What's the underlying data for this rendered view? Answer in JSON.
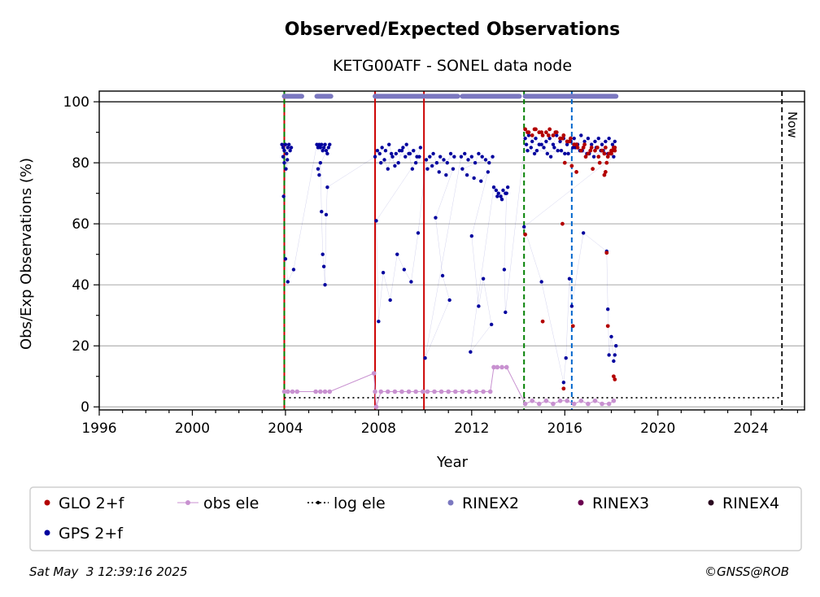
{
  "chart_data": {
    "type": "scatter",
    "title": "Observed/Expected Observations",
    "subtitle": "KETG00ATF - SONEL data node",
    "xlabel": "Year",
    "ylabel": "Obs/Exp Observations (%)",
    "xlim": [
      1996,
      2026.3
    ],
    "ylim": [
      -1,
      103.5
    ],
    "xticks": [
      1996,
      2000,
      2004,
      2008,
      2012,
      2016,
      2020,
      2024
    ],
    "yticks": [
      0,
      20,
      40,
      60,
      80,
      100
    ],
    "grid": "horizontal",
    "legend_position": "bottom",
    "now_label": "Now",
    "now_x": 2025.33,
    "vlines": [
      {
        "x": 2003.95,
        "color": "#cc0000",
        "style": "solid"
      },
      {
        "x": 2003.95,
        "color": "#008000",
        "style": "dashed"
      },
      {
        "x": 2007.85,
        "color": "#cc0000",
        "style": "solid"
      },
      {
        "x": 2009.95,
        "color": "#cc0000",
        "style": "solid"
      },
      {
        "x": 2014.25,
        "color": "#008000",
        "style": "dashed"
      },
      {
        "x": 2016.3,
        "color": "#0066cc",
        "style": "dashed"
      }
    ],
    "legend": [
      {
        "label": "GLO 2+f",
        "color": "#b30000",
        "marker": "dot"
      },
      {
        "label": "obs ele",
        "color": "#c891d0",
        "marker": "line-dot"
      },
      {
        "label": "log ele",
        "color": "#000000",
        "marker": "dotted-line"
      },
      {
        "label": "RINEX2",
        "color": "#7b78c0",
        "marker": "dot"
      },
      {
        "label": "RINEX3",
        "color": "#6b0050",
        "marker": "dot"
      },
      {
        "label": "RINEX4",
        "color": "#2a0a20",
        "marker": "dot"
      },
      {
        "label": "GPS 2+f",
        "color": "#00009e",
        "marker": "dot"
      }
    ],
    "series": [
      {
        "name": "GPS 2+f",
        "color": "#00009e",
        "x": [
          2003.85,
          2003.9,
          2003.95,
          2004.0,
          2004.05,
          2004.1,
          2004.15,
          2004.2,
          2004.25,
          2003.9,
          2003.95,
          2004.02,
          2004.08,
          2003.92,
          2004.0,
          2004.1,
          2004.35,
          2005.35,
          2005.4,
          2005.45,
          2005.5,
          2005.55,
          2005.6,
          2005.65,
          2005.7,
          2005.75,
          2005.8,
          2005.85,
          2005.9,
          2005.4,
          2005.45,
          2005.5,
          2005.55,
          2005.6,
          2005.65,
          2005.7,
          2005.75,
          2005.8,
          2007.85,
          2007.95,
          2008.05,
          2008.15,
          2008.3,
          2008.45,
          2008.6,
          2008.75,
          2008.9,
          2009.05,
          2009.2,
          2009.35,
          2009.5,
          2009.65,
          2009.8,
          2008.1,
          2008.25,
          2008.4,
          2008.55,
          2008.7,
          2008.85,
          2009.0,
          2009.15,
          2009.3,
          2009.45,
          2009.6,
          2009.75,
          2007.9,
          2008.0,
          2008.2,
          2008.5,
          2008.8,
          2009.1,
          2009.4,
          2009.7,
          2010.05,
          2010.2,
          2010.35,
          2010.5,
          2010.65,
          2010.8,
          2010.95,
          2011.1,
          2011.25,
          2010.1,
          2010.3,
          2010.6,
          2010.9,
          2011.2,
          2010.45,
          2010.75,
          2011.05,
          2010.0,
          2011.55,
          2011.7,
          2011.85,
          2012.0,
          2012.15,
          2012.3,
          2012.45,
          2012.6,
          2012.75,
          2012.9,
          2011.6,
          2011.8,
          2012.1,
          2012.4,
          2012.7,
          2012.0,
          2012.3,
          2012.5,
          2012.85,
          2011.95,
          2012.95,
          2013.05,
          2013.15,
          2013.25,
          2013.35,
          2013.45,
          2013.55,
          2013.1,
          2013.3,
          2013.5,
          2013.4,
          2013.45,
          2014.3,
          2014.45,
          2014.6,
          2014.75,
          2014.9,
          2015.05,
          2015.2,
          2015.35,
          2015.5,
          2015.65,
          2015.8,
          2015.95,
          2016.1,
          2016.25,
          2016.4,
          2016.55,
          2016.7,
          2016.85,
          2017.0,
          2017.15,
          2017.3,
          2017.45,
          2017.6,
          2017.75,
          2017.9,
          2018.05,
          2018.15,
          2014.35,
          2014.55,
          2014.8,
          2015.0,
          2015.25,
          2015.55,
          2015.85,
          2016.15,
          2016.45,
          2016.75,
          2017.05,
          2017.35,
          2017.65,
          2017.95,
          2014.4,
          2014.7,
          2015.1,
          2015.4,
          2015.7,
          2016.0,
          2016.35,
          2016.65,
          2016.95,
          2017.25,
          2017.55,
          2017.85,
          2018.1,
          2014.25,
          2015.0,
          2015.95,
          2016.05,
          2016.2,
          2016.3,
          2016.8,
          2017.8,
          2017.85,
          2017.9,
          2018.0,
          2018.1,
          2018.15,
          2018.2
        ],
        "y": [
          86,
          85,
          84,
          86,
          83,
          85,
          86,
          84,
          85,
          82,
          80,
          78,
          81,
          69,
          48.5,
          41,
          45,
          86,
          85,
          86,
          85,
          86,
          84,
          85,
          86,
          84,
          83,
          85,
          86,
          78,
          76,
          80,
          64,
          50,
          46,
          40,
          63,
          72,
          82,
          84,
          83,
          85,
          84,
          86,
          82,
          83,
          84,
          85,
          86,
          83,
          84,
          82,
          85,
          80,
          81,
          78,
          83,
          79,
          80,
          84,
          82,
          83,
          78,
          80,
          82,
          61,
          28,
          44,
          35,
          50,
          45,
          41,
          57,
          81,
          82,
          83,
          80,
          82,
          81,
          80,
          83,
          82,
          78,
          79,
          77,
          76,
          78,
          62,
          43,
          35,
          16,
          82,
          83,
          81,
          82,
          80,
          83,
          82,
          81,
          80,
          82,
          78,
          76,
          75,
          74,
          77,
          56,
          33,
          42,
          27,
          18,
          72,
          71,
          70,
          69,
          71,
          70,
          72,
          69,
          68,
          70,
          45,
          31,
          88,
          89,
          87,
          88,
          86,
          89,
          87,
          88,
          86,
          89,
          87,
          88,
          86,
          87,
          88,
          86,
          89,
          87,
          88,
          86,
          87,
          88,
          86,
          87,
          88,
          86,
          87,
          86,
          85,
          84,
          86,
          83,
          85,
          84,
          83,
          85,
          84,
          83,
          85,
          84,
          83,
          84,
          83,
          85,
          82,
          84,
          83,
          85,
          84,
          83,
          82,
          84,
          83,
          82,
          59,
          41,
          8,
          16,
          42,
          33,
          57,
          51,
          32,
          17,
          23,
          15,
          17,
          20
        ]
      },
      {
        "name": "GLO 2+f",
        "color": "#b30000",
        "x": [
          2014.3,
          2014.45,
          2014.6,
          2014.75,
          2014.9,
          2015.05,
          2015.2,
          2015.35,
          2015.5,
          2015.65,
          2015.8,
          2015.95,
          2016.1,
          2016.25,
          2016.4,
          2016.55,
          2016.7,
          2016.85,
          2017.0,
          2017.15,
          2017.3,
          2017.45,
          2017.6,
          2017.75,
          2017.9,
          2018.05,
          2018.15,
          2014.4,
          2014.7,
          2015.0,
          2015.3,
          2015.6,
          2015.9,
          2016.2,
          2016.5,
          2016.8,
          2017.1,
          2017.4,
          2017.7,
          2018.0,
          2016.0,
          2016.3,
          2016.5,
          2016.9,
          2017.2,
          2017.5,
          2017.7,
          2017.75,
          2017.8,
          2017.85,
          2018.0,
          2018.1,
          2018.15,
          2014.3,
          2015.05,
          2015.9,
          2015.95,
          2016.35,
          2017.8,
          2017.85,
          2018.1,
          2018.15
        ],
        "y": [
          91,
          90,
          89,
          91,
          90,
          89,
          90,
          91,
          89,
          90,
          88,
          89,
          87,
          88,
          86,
          85,
          84,
          86,
          83,
          85,
          84,
          82,
          84,
          85,
          83,
          84,
          85,
          90,
          91,
          90,
          89,
          90,
          88,
          87,
          86,
          85,
          84,
          85,
          83,
          84,
          80,
          79,
          77,
          82,
          78,
          80,
          76,
          77,
          80,
          82,
          83,
          85,
          84,
          56.5,
          28,
          60,
          6,
          26.5,
          50.5,
          26.5,
          10,
          9
        ]
      },
      {
        "name": "obs ele",
        "color": "#c891d0",
        "x": [
          2003.95,
          2004.1,
          2004.3,
          2004.5,
          2005.3,
          2005.5,
          2005.7,
          2005.9,
          2007.8,
          2007.85,
          2007.9,
          2008.1,
          2008.4,
          2008.7,
          2009.0,
          2009.3,
          2009.6,
          2009.9,
          2010.1,
          2010.4,
          2010.7,
          2011.0,
          2011.3,
          2011.6,
          2011.9,
          2012.2,
          2012.5,
          2012.8,
          2012.95,
          2013.1,
          2013.3,
          2013.5,
          2014.3,
          2014.6,
          2014.9,
          2015.2,
          2015.5,
          2015.8,
          2016.1,
          2016.4,
          2016.7,
          2017.0,
          2017.3,
          2017.6,
          2017.9,
          2018.1
        ],
        "y": [
          5,
          5,
          5,
          5,
          5,
          5,
          5,
          5,
          11,
          5,
          0,
          5,
          5,
          5,
          5,
          5,
          5,
          5,
          5,
          5,
          5,
          5,
          5,
          5,
          5,
          5,
          5,
          5,
          13,
          13,
          13,
          13,
          1,
          2,
          1,
          2,
          1,
          2,
          2,
          1,
          2,
          1,
          2,
          1,
          1,
          2
        ]
      },
      {
        "name": "log ele",
        "color": "#000000",
        "x": [
          2003.95,
          2025.33
        ],
        "y": [
          3,
          3
        ]
      },
      {
        "name": "RINEX2",
        "color": "#7b78c0",
        "segments": [
          [
            2003.95,
            2004.7
          ],
          [
            2005.35,
            2005.95
          ],
          [
            2007.85,
            2009.95
          ],
          [
            2010.05,
            2011.4
          ],
          [
            2011.6,
            2014.05
          ],
          [
            2014.3,
            2018.2
          ]
        ],
        "y": 101.8
      }
    ]
  },
  "footer": {
    "timestamp": "Sat May  3 12:39:16 2025",
    "credit": "©GNSS@ROB"
  }
}
